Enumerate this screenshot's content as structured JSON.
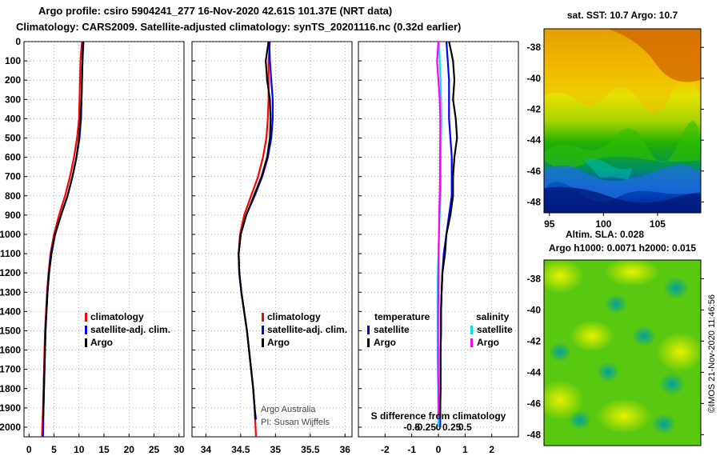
{
  "header": {
    "title_line1": "Argo profile: csiro 5904241_277 16-Nov-2020 42.61S 101.37E (NRT data)",
    "title_line2": "Climatology: CARS2009. Satellite-adjusted climatology: synTS_20201116.nc (0.32d earlier)"
  },
  "colors": {
    "climatology": "#ff0000",
    "satellite": "#0000ff",
    "argo": "#000000",
    "temp_satellite": "#0000ff",
    "salt_satellite": "#00e5ee",
    "salt_argo": "#ff00ff"
  },
  "chart_data": [
    {
      "type": "line",
      "panel": "temperature",
      "ylabel": "",
      "y_ticks": [
        0,
        100,
        200,
        300,
        400,
        500,
        600,
        700,
        800,
        900,
        1000,
        1100,
        1200,
        1300,
        1400,
        1500,
        1600,
        1700,
        1800,
        1900,
        2000
      ],
      "xlim": [
        -1,
        31
      ],
      "ylim": [
        0,
        2050
      ],
      "x_ticks": [
        0,
        5,
        10,
        15,
        20,
        25,
        30
      ],
      "legend": [
        "climatology",
        "satellite-adj. clim.",
        "Argo"
      ],
      "series": [
        {
          "name": "climatology",
          "color": "#ff0000",
          "points": [
            [
              10.6,
              0
            ],
            [
              10.3,
              100
            ],
            [
              10.2,
              200
            ],
            [
              10.1,
              300
            ],
            [
              10.0,
              400
            ],
            [
              9.6,
              500
            ],
            [
              9.0,
              600
            ],
            [
              8.2,
              700
            ],
            [
              7.2,
              800
            ],
            [
              6.0,
              900
            ],
            [
              5.0,
              1000
            ],
            [
              4.3,
              1100
            ],
            [
              3.9,
              1200
            ],
            [
              3.6,
              1300
            ],
            [
              3.4,
              1400
            ],
            [
              3.2,
              1500
            ],
            [
              3.1,
              1600
            ],
            [
              3.0,
              1700
            ],
            [
              2.9,
              1800
            ],
            [
              2.8,
              1900
            ],
            [
              2.6,
              2050
            ]
          ]
        },
        {
          "name": "satellite-adj. clim.",
          "color": "#0000ff",
          "points": [
            [
              10.9,
              0
            ],
            [
              10.7,
              100
            ],
            [
              10.6,
              200
            ],
            [
              10.5,
              300
            ],
            [
              10.4,
              400
            ],
            [
              10.1,
              500
            ],
            [
              9.5,
              600
            ],
            [
              8.7,
              700
            ],
            [
              7.7,
              800
            ],
            [
              6.4,
              900
            ],
            [
              5.2,
              1000
            ],
            [
              4.4,
              1100
            ],
            [
              4.0,
              1200
            ],
            [
              3.7,
              1300
            ],
            [
              3.5,
              1400
            ],
            [
              3.3,
              1500
            ],
            [
              3.2,
              1600
            ],
            [
              3.1,
              1700
            ],
            [
              3.0,
              1800
            ],
            [
              2.9,
              1900
            ],
            [
              2.8,
              2050
            ]
          ]
        },
        {
          "name": "Argo",
          "color": "#000000",
          "points": [
            [
              10.8,
              0
            ],
            [
              10.7,
              100
            ],
            [
              10.6,
              200
            ],
            [
              10.5,
              300
            ],
            [
              10.3,
              400
            ],
            [
              10.0,
              500
            ],
            [
              9.5,
              600
            ],
            [
              8.7,
              700
            ],
            [
              7.7,
              800
            ],
            [
              6.4,
              900
            ],
            [
              5.2,
              1000
            ],
            [
              4.5,
              1100
            ],
            [
              4.0,
              1200
            ],
            [
              3.7,
              1300
            ],
            [
              3.5,
              1400
            ],
            [
              3.3,
              1500
            ],
            [
              3.2,
              1600
            ],
            [
              3.1,
              1700
            ],
            [
              3.0,
              1800
            ],
            [
              2.9,
              1900
            ],
            [
              2.8,
              1960
            ]
          ]
        }
      ]
    },
    {
      "type": "line",
      "panel": "salinity",
      "xlim": [
        33.8,
        36.1
      ],
      "ylim": [
        0,
        2050
      ],
      "x_ticks": [
        34,
        34.5,
        35,
        35.5,
        36
      ],
      "legend": [
        "climatology",
        "satellite-adj. clim.",
        "Argo"
      ],
      "annotations": [
        "Argo Australia",
        "PI: Susan Wijffels"
      ],
      "series": [
        {
          "name": "climatology",
          "color": "#ff0000",
          "points": [
            [
              34.92,
              0
            ],
            [
              34.9,
              100
            ],
            [
              34.9,
              200
            ],
            [
              34.9,
              300
            ],
            [
              34.89,
              400
            ],
            [
              34.87,
              500
            ],
            [
              34.82,
              600
            ],
            [
              34.75,
              700
            ],
            [
              34.65,
              800
            ],
            [
              34.55,
              900
            ],
            [
              34.49,
              1000
            ],
            [
              34.47,
              1100
            ],
            [
              34.48,
              1200
            ],
            [
              34.51,
              1300
            ],
            [
              34.55,
              1400
            ],
            [
              34.59,
              1500
            ],
            [
              34.62,
              1600
            ],
            [
              34.65,
              1700
            ],
            [
              34.68,
              1800
            ],
            [
              34.7,
              1900
            ],
            [
              34.72,
              2050
            ]
          ]
        },
        {
          "name": "satellite-adj. clim.",
          "color": "#0000ff",
          "points": [
            [
              34.91,
              0
            ],
            [
              34.92,
              100
            ],
            [
              34.94,
              200
            ],
            [
              34.96,
              300
            ],
            [
              34.96,
              400
            ],
            [
              34.94,
              500
            ],
            [
              34.89,
              600
            ],
            [
              34.81,
              700
            ],
            [
              34.7,
              800
            ],
            [
              34.58,
              900
            ],
            [
              34.5,
              1000
            ],
            [
              34.47,
              1100
            ],
            [
              34.48,
              1200
            ],
            [
              34.51,
              1300
            ],
            [
              34.55,
              1400
            ],
            [
              34.59,
              1500
            ],
            [
              34.62,
              1600
            ],
            [
              34.65,
              1700
            ],
            [
              34.68,
              1800
            ],
            [
              34.7,
              1900
            ],
            [
              34.72,
              1960
            ]
          ]
        },
        {
          "name": "Argo",
          "color": "#000000",
          "points": [
            [
              34.9,
              0
            ],
            [
              34.86,
              100
            ],
            [
              34.88,
              200
            ],
            [
              34.92,
              300
            ],
            [
              34.93,
              400
            ],
            [
              34.92,
              500
            ],
            [
              34.88,
              600
            ],
            [
              34.8,
              700
            ],
            [
              34.69,
              800
            ],
            [
              34.58,
              900
            ],
            [
              34.5,
              1000
            ],
            [
              34.47,
              1100
            ],
            [
              34.48,
              1200
            ],
            [
              34.51,
              1300
            ],
            [
              34.55,
              1400
            ],
            [
              34.59,
              1500
            ],
            [
              34.62,
              1600
            ],
            [
              34.65,
              1700
            ],
            [
              34.68,
              1800
            ],
            [
              34.7,
              1900
            ],
            [
              34.71,
              1960
            ]
          ]
        }
      ]
    },
    {
      "type": "line",
      "panel": "difference",
      "xlim": [
        -3,
        3
      ],
      "ylim": [
        0,
        2050
      ],
      "x_ticks": [
        -2,
        -1,
        0,
        1,
        2
      ],
      "x_tick_labels": [
        "-2",
        "-1",
        "0",
        "1",
        "2"
      ],
      "s_axis_ticks": [
        -0.5,
        -0.25,
        0,
        0.25,
        0.5
      ],
      "s_axis_labels": [
        "-0.5",
        "-0.25",
        "0",
        "0.25",
        "0.5"
      ],
      "s_axis_title": "S difference from climatology",
      "legend_titles": [
        "temperature",
        "salinity"
      ],
      "legend_entries": {
        "temperature": [
          "satellite",
          "Argo"
        ],
        "salinity": [
          "satellite",
          "Argo"
        ]
      },
      "series": [
        {
          "name": "temperature satellite",
          "color": "#0000ff",
          "points": [
            [
              0.3,
              0
            ],
            [
              0.35,
              100
            ],
            [
              0.4,
              200
            ],
            [
              0.4,
              300
            ],
            [
              0.4,
              400
            ],
            [
              0.45,
              500
            ],
            [
              0.5,
              600
            ],
            [
              0.5,
              700
            ],
            [
              0.5,
              800
            ],
            [
              0.4,
              900
            ],
            [
              0.3,
              1000
            ],
            [
              0.2,
              1100
            ],
            [
              0.15,
              1200
            ],
            [
              0.12,
              1300
            ],
            [
              0.1,
              1400
            ],
            [
              0.1,
              1500
            ],
            [
              0.08,
              1600
            ],
            [
              0.08,
              1700
            ],
            [
              0.08,
              1800
            ],
            [
              0.07,
              1900
            ],
            [
              0.07,
              2000
            ]
          ]
        },
        {
          "name": "temperature Argo",
          "color": "#000000",
          "points": [
            [
              0.4,
              0
            ],
            [
              0.55,
              100
            ],
            [
              0.6,
              200
            ],
            [
              0.55,
              300
            ],
            [
              0.65,
              400
            ],
            [
              0.7,
              500
            ],
            [
              0.6,
              600
            ],
            [
              0.55,
              700
            ],
            [
              0.55,
              800
            ],
            [
              0.45,
              900
            ],
            [
              0.3,
              1000
            ],
            [
              0.25,
              1100
            ],
            [
              0.15,
              1200
            ],
            [
              0.12,
              1300
            ],
            [
              0.1,
              1400
            ],
            [
              0.1,
              1500
            ],
            [
              0.08,
              1600
            ],
            [
              0.08,
              1700
            ],
            [
              0.08,
              1800
            ],
            [
              0.07,
              1900
            ],
            [
              0.07,
              1950
            ]
          ]
        },
        {
          "name": "salinity satellite",
          "color": "#00e5ee",
          "points": [
            [
              0.02,
              0
            ],
            [
              0.05,
              100
            ],
            [
              0.08,
              200
            ],
            [
              0.1,
              300
            ],
            [
              0.11,
              400
            ],
            [
              0.1,
              500
            ],
            [
              0.09,
              600
            ],
            [
              0.09,
              700
            ],
            [
              0.08,
              800
            ],
            [
              0.05,
              900
            ],
            [
              0.02,
              1000
            ],
            [
              0.0,
              1100
            ],
            [
              -0.02,
              1200
            ],
            [
              -0.03,
              1300
            ],
            [
              -0.03,
              1400
            ],
            [
              -0.03,
              1500
            ],
            [
              -0.03,
              1600
            ],
            [
              -0.02,
              1700
            ],
            [
              -0.01,
              1800
            ],
            [
              0.0,
              1900
            ],
            [
              0.0,
              2000
            ]
          ]
        },
        {
          "name": "salinity Argo",
          "color": "#ff00ff",
          "points": [
            [
              0.0,
              0
            ],
            [
              -0.05,
              100
            ],
            [
              0.0,
              200
            ],
            [
              0.05,
              300
            ],
            [
              0.07,
              400
            ],
            [
              0.07,
              500
            ],
            [
              0.06,
              600
            ],
            [
              0.06,
              700
            ],
            [
              0.05,
              800
            ],
            [
              0.03,
              900
            ],
            [
              0.02,
              1000
            ],
            [
              0.01,
              1100
            ],
            [
              0.0,
              1200
            ],
            [
              0.0,
              1300
            ],
            [
              -0.01,
              1400
            ],
            [
              -0.01,
              1500
            ],
            [
              -0.01,
              1600
            ],
            [
              -0.01,
              1700
            ],
            [
              0.0,
              1800
            ],
            [
              0.0,
              1900
            ],
            [
              0.0,
              1950
            ]
          ]
        }
      ]
    },
    {
      "type": "heatmap",
      "panel": "satellite SST map",
      "title": "sat. SST: 10.7 Argo: 10.7",
      "x_ticks": [
        95,
        100,
        105
      ],
      "y_ticks": [
        -38,
        -40,
        -42,
        -44,
        -46,
        -48
      ],
      "xlim": [
        94.5,
        109
      ],
      "ylim": [
        -48.7,
        -36.8
      ]
    },
    {
      "type": "heatmap",
      "panel": "altimetry SLA map",
      "title_line1": "Altim. SLA: 0.028",
      "title_line2": "Argo h1000: 0.0071 h2000: 0.015",
      "y_ticks": [
        -38,
        -40,
        -42,
        -44,
        -46,
        -48
      ],
      "ylim": [
        -48.7,
        -36.8
      ]
    }
  ],
  "footer": {
    "credit": "©IMOS 21-Nov-2020 11:46:56"
  }
}
